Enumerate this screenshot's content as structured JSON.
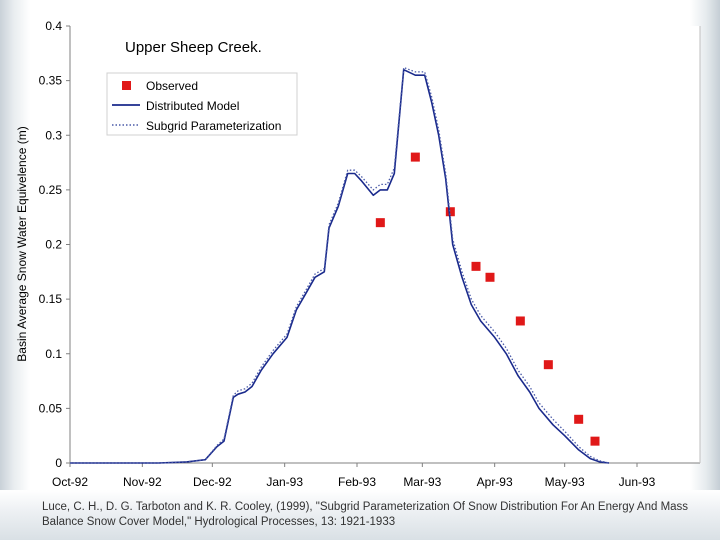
{
  "colors": {
    "distributed": "#1a2a8c",
    "subgrid": "#4a5aa8",
    "observed": "#e01818",
    "axis": "#808080",
    "text": "#000000"
  },
  "chart_data": {
    "type": "line",
    "title": "Upper Sheep Creek.",
    "ylabel": "Basin Average Snow Water Equivelence (m)",
    "xlabel": "",
    "xlim": [
      "1992-10-01",
      "1993-06-28"
    ],
    "ylim": [
      0,
      0.4
    ],
    "yticks": [
      0,
      0.05,
      0.1,
      0.15,
      0.2,
      0.25,
      0.3,
      0.35,
      0.4
    ],
    "ytick_labels": [
      "0",
      "0.05",
      "0.1",
      "0.15",
      "0.2",
      "0.25",
      "0.3",
      "0.35",
      "0.4"
    ],
    "xticks": [
      "1992-10-01",
      "1992-11-01",
      "1992-12-01",
      "1993-01-01",
      "1993-02-01",
      "1993-03-01",
      "1993-04-01",
      "1993-05-01",
      "1993-06-01"
    ],
    "xtick_labels": [
      "Oct-92",
      "Nov-92",
      "Dec-92",
      "Jan-93",
      "Feb-93",
      "Mar-93",
      "Apr-93",
      "May-93",
      "Jun-93"
    ],
    "legend_position": "top-left",
    "legend": [
      "Observed",
      "Distributed Model",
      "Subgrid Parameterization"
    ],
    "grid": false,
    "series": [
      {
        "name": "Observed",
        "kind": "markers",
        "x": [
          "1993-02-11",
          "1993-02-26",
          "1993-03-13",
          "1993-03-24",
          "1993-03-30",
          "1993-04-12",
          "1993-04-24",
          "1993-05-07",
          "1993-05-14"
        ],
        "y": [
          0.22,
          0.28,
          0.23,
          0.18,
          0.17,
          0.13,
          0.09,
          0.04,
          0.02
        ]
      },
      {
        "name": "Distributed Model",
        "kind": "line",
        "x": [
          "1992-10-01",
          "1992-11-08",
          "1992-11-20",
          "1992-11-28",
          "1992-12-03",
          "1992-12-06",
          "1992-12-10",
          "1992-12-12",
          "1992-12-15",
          "1992-12-18",
          "1992-12-22",
          "1992-12-27",
          "1993-01-02",
          "1993-01-06",
          "1993-01-10",
          "1993-01-14",
          "1993-01-18",
          "1993-01-20",
          "1993-01-24",
          "1993-01-28",
          "1993-01-31",
          "1993-02-03",
          "1993-02-08",
          "1993-02-11",
          "1993-02-14",
          "1993-02-17",
          "1993-02-21",
          "1993-02-26",
          "1993-03-02",
          "1993-03-05",
          "1993-03-08",
          "1993-03-11",
          "1993-03-14",
          "1993-03-18",
          "1993-03-22",
          "1993-03-26",
          "1993-04-01",
          "1993-04-06",
          "1993-04-11",
          "1993-04-16",
          "1993-04-20",
          "1993-04-26",
          "1993-05-01",
          "1993-05-07",
          "1993-05-12",
          "1993-05-16",
          "1993-05-20"
        ],
        "y": [
          0,
          0,
          0.001,
          0.003,
          0.015,
          0.02,
          0.06,
          0.063,
          0.065,
          0.07,
          0.085,
          0.1,
          0.115,
          0.14,
          0.155,
          0.17,
          0.175,
          0.215,
          0.235,
          0.265,
          0.265,
          0.258,
          0.245,
          0.25,
          0.25,
          0.265,
          0.36,
          0.355,
          0.355,
          0.33,
          0.3,
          0.26,
          0.2,
          0.17,
          0.145,
          0.13,
          0.115,
          0.1,
          0.08,
          0.065,
          0.05,
          0.035,
          0.025,
          0.012,
          0.004,
          0.001,
          0
        ]
      },
      {
        "name": "Subgrid Parameterization",
        "kind": "dotted-line",
        "x": [
          "1992-10-01",
          "1992-11-08",
          "1992-11-20",
          "1992-11-28",
          "1992-12-03",
          "1992-12-06",
          "1992-12-10",
          "1992-12-12",
          "1992-12-15",
          "1992-12-18",
          "1992-12-22",
          "1992-12-27",
          "1993-01-02",
          "1993-01-06",
          "1993-01-10",
          "1993-01-14",
          "1993-01-18",
          "1993-01-20",
          "1993-01-24",
          "1993-01-28",
          "1993-01-31",
          "1993-02-03",
          "1993-02-08",
          "1993-02-11",
          "1993-02-14",
          "1993-02-17",
          "1993-02-21",
          "1993-02-26",
          "1993-03-02",
          "1993-03-05",
          "1993-03-08",
          "1993-03-11",
          "1993-03-14",
          "1993-03-18",
          "1993-03-22",
          "1993-03-26",
          "1993-04-01",
          "1993-04-06",
          "1993-04-11",
          "1993-04-16",
          "1993-04-20",
          "1993-04-26",
          "1993-05-01",
          "1993-05-07",
          "1993-05-12",
          "1993-05-16",
          "1993-05-20"
        ],
        "y": [
          0,
          0,
          0.001,
          0.003,
          0.016,
          0.022,
          0.062,
          0.066,
          0.068,
          0.073,
          0.088,
          0.103,
          0.118,
          0.143,
          0.158,
          0.173,
          0.178,
          0.218,
          0.238,
          0.268,
          0.268,
          0.262,
          0.25,
          0.255,
          0.255,
          0.27,
          0.362,
          0.358,
          0.358,
          0.335,
          0.305,
          0.265,
          0.205,
          0.175,
          0.15,
          0.135,
          0.12,
          0.105,
          0.085,
          0.07,
          0.055,
          0.04,
          0.029,
          0.015,
          0.006,
          0.002,
          0
        ]
      }
    ]
  },
  "citation": "Luce, C. H., D. G. Tarboton and K. R. Cooley, (1999), \"Subgrid Parameterization Of Snow Distribution For An Energy And Mass Balance Snow Cover Model,\" Hydrological Processes, 13: 1921-1933"
}
